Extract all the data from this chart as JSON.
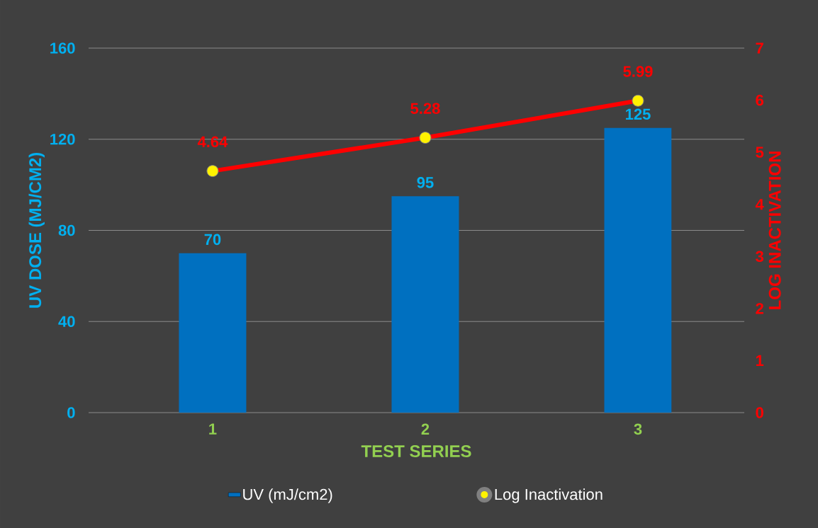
{
  "chart_data": {
    "type": "bar",
    "categories": [
      "1",
      "2",
      "3"
    ],
    "xlabel": "TEST SERIES",
    "ylabel": "UV DOSE (MJ/CM2)",
    "y2label": "LOG INACTIVATION",
    "series": [
      {
        "name": "UV (mJ/cm2)",
        "color": "#0070c0",
        "values": [
          70,
          95,
          125
        ]
      },
      {
        "name": "Log Inactivation",
        "type": "line",
        "axis": "y2",
        "color": "#ff0000",
        "marker": "circle",
        "values": [
          4.64,
          5.28,
          5.99
        ]
      }
    ],
    "data_labels": true,
    "ylim": [
      0,
      160
    ],
    "yticks": [
      0,
      40,
      80,
      120,
      160
    ],
    "y2lim": [
      0,
      7
    ],
    "y2ticks": [
      0,
      1,
      2,
      3,
      4,
      5,
      6,
      7
    ],
    "grid": "y",
    "legend": "bottom"
  }
}
